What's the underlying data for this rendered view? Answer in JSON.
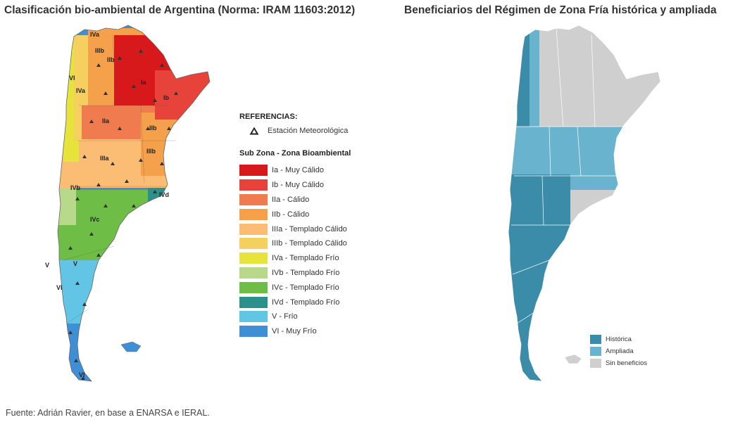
{
  "titles": {
    "left": "Clasificación bio-ambiental de Argentina (Norma: IRAM 11603:2012)",
    "right": "Beneficiarios del Régimen de Zona Fría histórica y ampliada"
  },
  "legend_zones": {
    "references_title": "REFERENCIAS:",
    "station_label": "Estación Meteorológica",
    "subzone_title": "Sub Zona - Zona Bioambiental",
    "items": [
      {
        "label": "Ia - Muy Cálido",
        "color": "#d7191c"
      },
      {
        "label": "Ib - Muy Cálido",
        "color": "#e8433a"
      },
      {
        "label": "IIa - Cálido",
        "color": "#f07b4f"
      },
      {
        "label": "IIb - Cálido",
        "color": "#f5a04b"
      },
      {
        "label": "IIIa - Templado Cálido",
        "color": "#fbbd74"
      },
      {
        "label": "IIIb - Templado Cálido",
        "color": "#f5d060"
      },
      {
        "label": "IVa - Templado Frío",
        "color": "#e6e33a"
      },
      {
        "label": "IVb - Templado Frío",
        "color": "#b9d98a"
      },
      {
        "label": "IVc - Templado Frío",
        "color": "#6ebd46"
      },
      {
        "label": "IVd - Templado Frío",
        "color": "#2a918b"
      },
      {
        "label": "V - Frío",
        "color": "#62c5e6"
      },
      {
        "label": "VI - Muy Frío",
        "color": "#3f8fd6"
      }
    ]
  },
  "map_labels": {
    "Ia": "Ia",
    "Ib": "Ib",
    "IIa": "IIa",
    "IIb": "IIb",
    "IIIa": "IIIa",
    "IIIb": "IIIb",
    "IVa": "IVa",
    "IVb": "IVb",
    "IVc": "IVc",
    "IVd": "IVd",
    "V": "V",
    "VI": "VI"
  },
  "legend_benefits": {
    "items": [
      {
        "label": "Histórica",
        "color": "#3a8ca8"
      },
      {
        "label": "Ampliada",
        "color": "#6ab3cf"
      },
      {
        "label": "Sin beneficios",
        "color": "#cfcfcf"
      }
    ]
  },
  "source": "Fuente: Adrián Ravier, en base a ENARSA e IERAL."
}
